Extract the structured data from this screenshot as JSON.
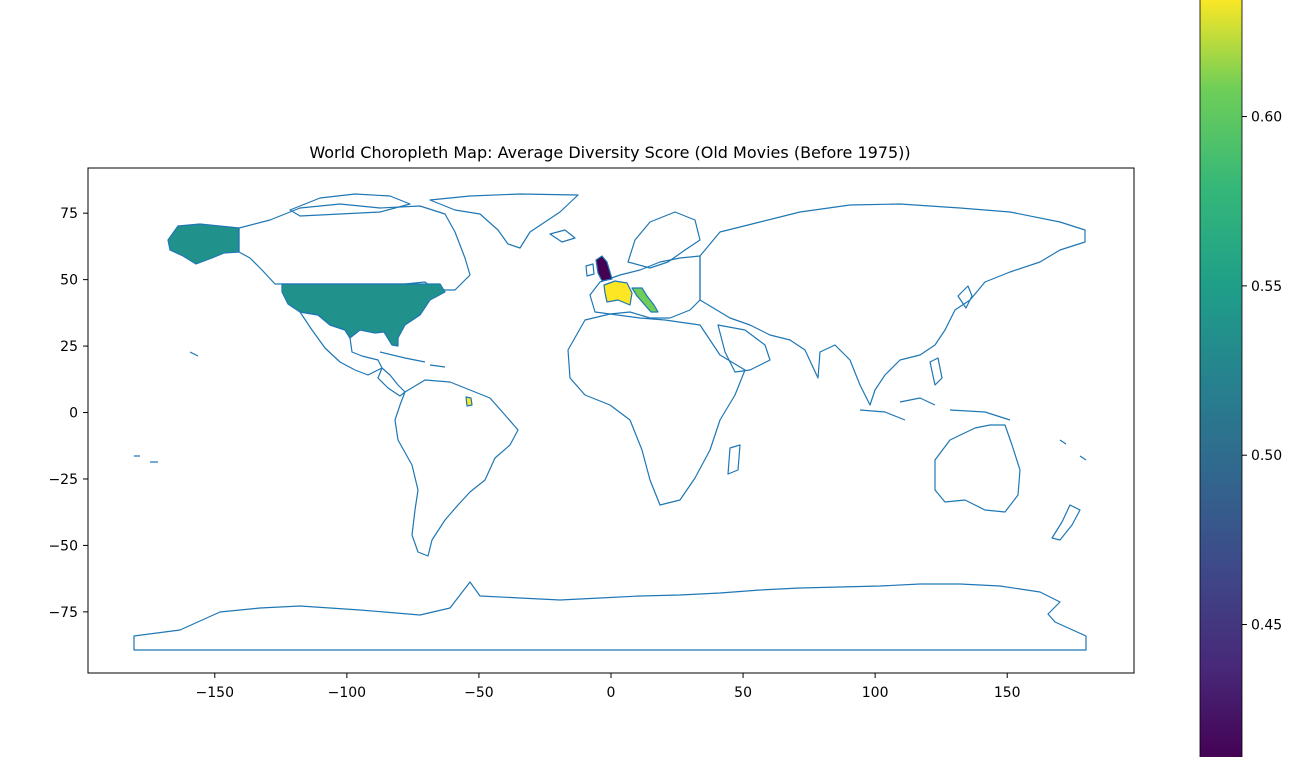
{
  "chart_data": {
    "type": "choropleth",
    "title": "World Choropleth Map: Average Diversity Score (Old Movies (Before 1975))",
    "xlabel": "",
    "ylabel": "",
    "xlim": [
      -198,
      198
    ],
    "ylim": [
      -98,
      92
    ],
    "xticks": [
      -150,
      -100,
      -50,
      0,
      50,
      100,
      150
    ],
    "yticks": [
      75,
      50,
      25,
      0,
      -25,
      -50,
      -75
    ],
    "colormap": "viridis",
    "colorbar": {
      "range": [
        0.41,
        0.635
      ],
      "ticks": [
        0.45,
        0.5,
        0.55,
        0.6
      ],
      "tick_labels": [
        "0.45",
        "0.50",
        "0.55",
        "0.60"
      ]
    },
    "outline_color": "#1f77b4",
    "regions": [
      {
        "name": "United States",
        "value": 0.52,
        "color": "#21918c"
      },
      {
        "name": "France",
        "value": 0.635,
        "color": "#fde725"
      },
      {
        "name": "French Guiana",
        "value": 0.635,
        "color": "#fde725"
      },
      {
        "name": "United Kingdom",
        "value": 0.41,
        "color": "#440154"
      },
      {
        "name": "Italy",
        "value": 0.58,
        "color": "#6ece58"
      }
    ]
  }
}
